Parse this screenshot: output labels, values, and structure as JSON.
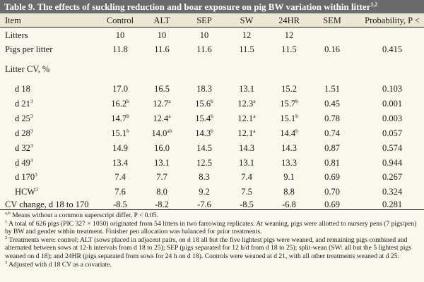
{
  "title": "Table 9. The effects of suckling reduction and boar exposure on pig BW variation within litter",
  "title_sup": "1,2",
  "columns": {
    "item": "Item",
    "control": "Control",
    "alt": "ALT",
    "sep": "SEP",
    "sw": "SW",
    "hr24": "24HR",
    "sem": "SEM",
    "prob": "Probability, P <"
  },
  "rows": [
    {
      "label": "Litters",
      "label_sup": "",
      "control": "10",
      "alt": "10",
      "sep": "10",
      "sw": "12",
      "hr24": "12",
      "sem": "",
      "prob": "",
      "control_sup": "",
      "alt_sup": "",
      "sep_sup": "",
      "sw_sup": "",
      "hr24_sup": ""
    },
    {
      "label": "Pigs per litter",
      "label_sup": "",
      "control": "11.8",
      "alt": "11.6",
      "sep": "11.6",
      "sw": "11.5",
      "hr24": "11.5",
      "sem": "0.16",
      "prob": "0.415",
      "control_sup": "",
      "alt_sup": "",
      "sep_sup": "",
      "sw_sup": "",
      "hr24_sup": ""
    },
    {
      "label": "Litter CV, %",
      "label_sup": "",
      "control": "",
      "alt": "",
      "sep": "",
      "sw": "",
      "hr24": "",
      "sem": "",
      "prob": "",
      "control_sup": "",
      "alt_sup": "",
      "sep_sup": "",
      "sw_sup": "",
      "hr24_sup": ""
    },
    {
      "label": "d 18",
      "label_sup": "",
      "control": "17.0",
      "alt": "16.5",
      "sep": "18.3",
      "sw": "13.1",
      "hr24": "15.2",
      "sem": "1.51",
      "prob": "0.103",
      "control_sup": "",
      "alt_sup": "",
      "sep_sup": "",
      "sw_sup": "",
      "hr24_sup": ""
    },
    {
      "label": "d 21",
      "label_sup": "3",
      "control": "16.2",
      "alt": "12.7",
      "sep": "15.6",
      "sw": "12.3",
      "hr24": "15.7",
      "sem": "0.45",
      "prob": "0.001",
      "control_sup": "b",
      "alt_sup": "a",
      "sep_sup": "b",
      "sw_sup": "a",
      "hr24_sup": "b"
    },
    {
      "label": "d 25",
      "label_sup": "3",
      "control": "14.7",
      "alt": "12.4",
      "sep": "15.4",
      "sw": "12.1",
      "hr24": "15.1",
      "sem": "0.78",
      "prob": "0.003",
      "control_sup": "b",
      "alt_sup": "a",
      "sep_sup": "b",
      "sw_sup": "a",
      "hr24_sup": "b"
    },
    {
      "label": "d 28",
      "label_sup": "3",
      "control": "15.1",
      "alt": "14.0",
      "sep": "14.3",
      "sw": "12.1",
      "hr24": "14.4",
      "sem": "0.74",
      "prob": "0.057",
      "control_sup": "b",
      "alt_sup": "ab",
      "sep_sup": "b",
      "sw_sup": "a",
      "hr24_sup": "b"
    },
    {
      "label": "d 32",
      "label_sup": "3",
      "control": "14.9",
      "alt": "16.0",
      "sep": "14.5",
      "sw": "14.3",
      "hr24": "14.3",
      "sem": "0.87",
      "prob": "0.574",
      "control_sup": "",
      "alt_sup": "",
      "sep_sup": "",
      "sw_sup": "",
      "hr24_sup": ""
    },
    {
      "label": "d 49",
      "label_sup": "3",
      "control": "13.4",
      "alt": "13.1",
      "sep": "12.5",
      "sw": "13.1",
      "hr24": "13.3",
      "sem": "0.81",
      "prob": "0.944",
      "control_sup": "",
      "alt_sup": "",
      "sep_sup": "",
      "sw_sup": "",
      "hr24_sup": ""
    },
    {
      "label": "d 170",
      "label_sup": "3",
      "control": "7.4",
      "alt": "7.7",
      "sep": "8.3",
      "sw": "7.4",
      "hr24": "9.1",
      "sem": "0.69",
      "prob": "0.267",
      "control_sup": "",
      "alt_sup": "",
      "sep_sup": "",
      "sw_sup": "",
      "hr24_sup": ""
    },
    {
      "label": "HCW",
      "label_sup": "3",
      "control": "7.6",
      "alt": "8.0",
      "sep": "9.2",
      "sw": "7.5",
      "hr24": "8.8",
      "sem": "0.70",
      "prob": "0.324",
      "control_sup": "",
      "alt_sup": "",
      "sep_sup": "",
      "sw_sup": "",
      "hr24_sup": ""
    },
    {
      "label": "CV change, d 18 to 170",
      "label_sup": "",
      "control": "-8.5",
      "alt": "-8.2",
      "sep": "-7.6",
      "sw": "-8.5",
      "hr24": "-6.8",
      "sem": "0.69",
      "prob": "0.281",
      "control_sup": "",
      "alt_sup": "",
      "sep_sup": "",
      "sw_sup": "",
      "hr24_sup": ""
    }
  ],
  "footnotes": {
    "ab": {
      "mark": "a,b",
      "text": " Means without a common superscript differ, P < 0.05."
    },
    "f1": {
      "mark": "1",
      "text": " A total of 626 pigs (PIC 327 × 1050) originated from 54 litters in two farrowing replicates. At weaning, pigs were allotted to nursery pens (7 pigs/pen) by BW and gender within treatment. Finisher pen allocation was balanced for prior treatments."
    },
    "f2": {
      "mark": "2",
      "text": " Treatments were: control; ALT (sows placed in adjacent pairs, on d 18 all but the five lightest pigs were weaned, and remaining pigs combined and alternated between sows at 12-h intervals from d 18 to 25); SEP (pigs separated for 12 h/d from d 18 to 25); split-wean (SW: all but the 5 lightest pigs weaned on d 18); and 24HR (pigs separated from sows for 24 h on d 18). Controls were weaned at d 21, with all other treatments weaned at d 25."
    },
    "f3": {
      "mark": "3",
      "text": " Adjusted with d 18 CV as a covariate."
    }
  },
  "colors": {
    "caption_bar": "#6b6b6b",
    "header_band": "#ece6d4",
    "background": "#fbf7ec"
  }
}
